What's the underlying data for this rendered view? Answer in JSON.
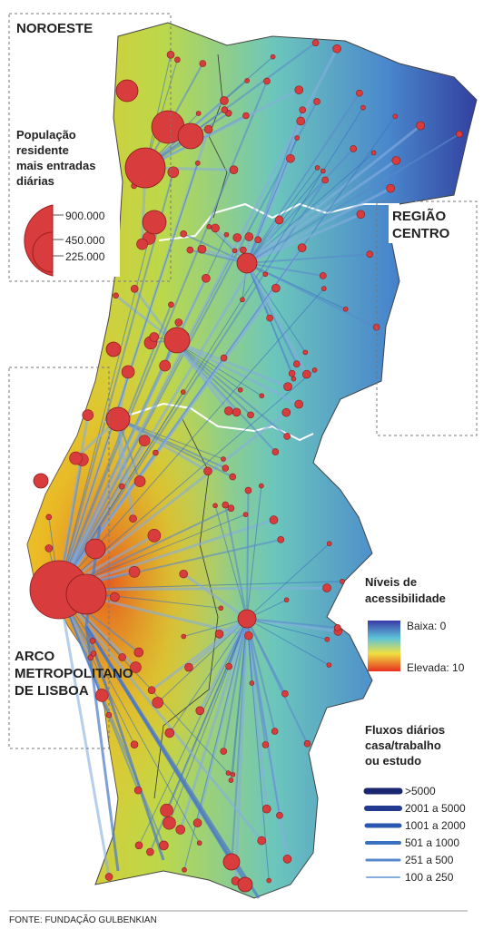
{
  "regions": {
    "noroeste": "NOROESTE",
    "centro": [
      "REGIÃO",
      "CENTRO"
    ],
    "lisboa": [
      "ARCO",
      "METROPOLITANO",
      "DE LISBOA"
    ]
  },
  "population_legend": {
    "title": [
      "População",
      "residente",
      "mais entradas",
      "diárias"
    ],
    "sizes": [
      "900.000",
      "450.000",
      "225.000"
    ]
  },
  "accessibility_legend": {
    "title": [
      "Níveis de",
      "acessibilidade"
    ],
    "low": "Baixa: 0",
    "high": "Elevada: 10"
  },
  "flows_legend": {
    "title": [
      "Fluxos diários",
      "casa/trabalho",
      "ou estudo"
    ],
    "classes": [
      ">5000",
      "2001 a 5000",
      "1001 a 2000",
      "501 a 1000",
      "251 a 500",
      "100 a 250"
    ]
  },
  "source": "FONTE: FUNDAÇÃO GULBENKIAN"
}
